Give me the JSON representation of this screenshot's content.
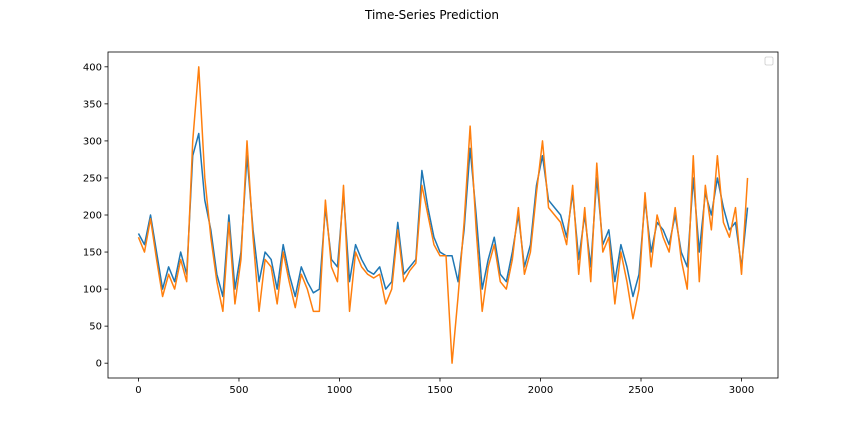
{
  "chart_data": {
    "type": "line",
    "title": "Time-Series Prediction",
    "x": [
      0,
      30,
      60,
      90,
      120,
      150,
      180,
      210,
      240,
      270,
      300,
      330,
      360,
      390,
      420,
      450,
      480,
      510,
      540,
      570,
      600,
      630,
      660,
      690,
      720,
      750,
      780,
      810,
      840,
      870,
      900,
      930,
      960,
      990,
      1020,
      1050,
      1080,
      1110,
      1140,
      1170,
      1200,
      1230,
      1260,
      1290,
      1320,
      1350,
      1380,
      1410,
      1440,
      1470,
      1500,
      1530,
      1560,
      1590,
      1620,
      1650,
      1680,
      1710,
      1740,
      1770,
      1800,
      1830,
      1860,
      1890,
      1920,
      1950,
      1980,
      2010,
      2040,
      2070,
      2100,
      2130,
      2160,
      2190,
      2220,
      2250,
      2280,
      2310,
      2340,
      2370,
      2400,
      2430,
      2460,
      2490,
      2520,
      2550,
      2580,
      2610,
      2640,
      2670,
      2700,
      2730,
      2760,
      2790,
      2820,
      2850,
      2880,
      2910,
      2940,
      2970,
      3000,
      3030
    ],
    "series": [
      {
        "color": "#1f77b4",
        "values": [
          175,
          160,
          200,
          150,
          100,
          130,
          110,
          150,
          120,
          280,
          310,
          220,
          180,
          120,
          90,
          200,
          100,
          150,
          280,
          180,
          110,
          150,
          140,
          100,
          160,
          120,
          90,
          130,
          110,
          95,
          100,
          210,
          140,
          130,
          230,
          110,
          160,
          140,
          125,
          120,
          130,
          100,
          110,
          190,
          120,
          130,
          140,
          260,
          210,
          170,
          150,
          145,
          145,
          110,
          180,
          290,
          200,
          100,
          140,
          170,
          120,
          110,
          150,
          200,
          130,
          160,
          240,
          280,
          220,
          210,
          200,
          170,
          230,
          140,
          200,
          130,
          250,
          160,
          180,
          110,
          160,
          130,
          90,
          120,
          220,
          150,
          190,
          180,
          160,
          200,
          150,
          130,
          250,
          150,
          230,
          200,
          250,
          210,
          180,
          190,
          130,
          210
        ]
      },
      {
        "color": "#ff7f0e",
        "values": [
          170,
          150,
          195,
          140,
          90,
          120,
          100,
          140,
          110,
          300,
          400,
          250,
          170,
          110,
          70,
          190,
          80,
          140,
          300,
          170,
          70,
          140,
          130,
          80,
          150,
          110,
          75,
          120,
          100,
          70,
          70,
          220,
          130,
          110,
          240,
          70,
          150,
          130,
          120,
          115,
          120,
          80,
          100,
          180,
          110,
          125,
          135,
          240,
          200,
          160,
          145,
          145,
          0,
          90,
          190,
          320,
          180,
          70,
          130,
          160,
          110,
          100,
          140,
          210,
          120,
          150,
          230,
          300,
          210,
          200,
          190,
          160,
          240,
          120,
          210,
          110,
          270,
          150,
          170,
          80,
          150,
          110,
          60,
          100,
          230,
          130,
          200,
          170,
          150,
          210,
          140,
          100,
          280,
          110,
          240,
          180,
          280,
          190,
          170,
          210,
          120,
          250
        ]
      }
    ],
    "xlim": [
      -151.5,
      3181.5
    ],
    "ylim": [
      -20,
      420
    ],
    "xticks": [
      0,
      500,
      1000,
      1500,
      2000,
      2500,
      3000
    ],
    "yticks": [
      0,
      50,
      100,
      150,
      200,
      250,
      300,
      350,
      400
    ],
    "grid": false,
    "legend": "upper right"
  }
}
